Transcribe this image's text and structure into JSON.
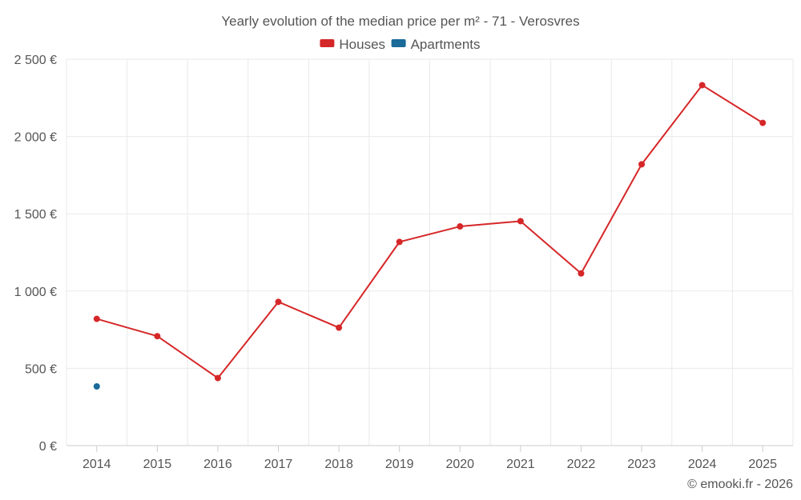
{
  "chart_data": {
    "type": "line",
    "title": "Yearly evolution of the median price per m² - 71 - Verosvres",
    "categories": [
      "2014",
      "2015",
      "2016",
      "2017",
      "2018",
      "2019",
      "2020",
      "2021",
      "2022",
      "2023",
      "2024",
      "2025"
    ],
    "series": [
      {
        "name": "Houses",
        "color": "#d62728",
        "values": [
          820,
          708,
          437,
          930,
          763,
          1318,
          1418,
          1452,
          1114,
          1820,
          2332,
          2088
        ]
      },
      {
        "name": "Apartments",
        "color": "#1a6a9a",
        "values": [
          383,
          null,
          null,
          null,
          null,
          null,
          null,
          null,
          null,
          null,
          null,
          null
        ]
      }
    ],
    "yticks": [
      0,
      500,
      1000,
      1500,
      2000,
      2500
    ],
    "ytick_labels": [
      "0 €",
      "500 €",
      "1 000 €",
      "1 500 €",
      "2 000 €",
      "2 500 €"
    ],
    "ylim": [
      0,
      2500
    ],
    "xlabel": "",
    "ylabel": "",
    "grid": true,
    "legend_position": "top-center"
  },
  "credit": "© emooki.fr - 2026"
}
